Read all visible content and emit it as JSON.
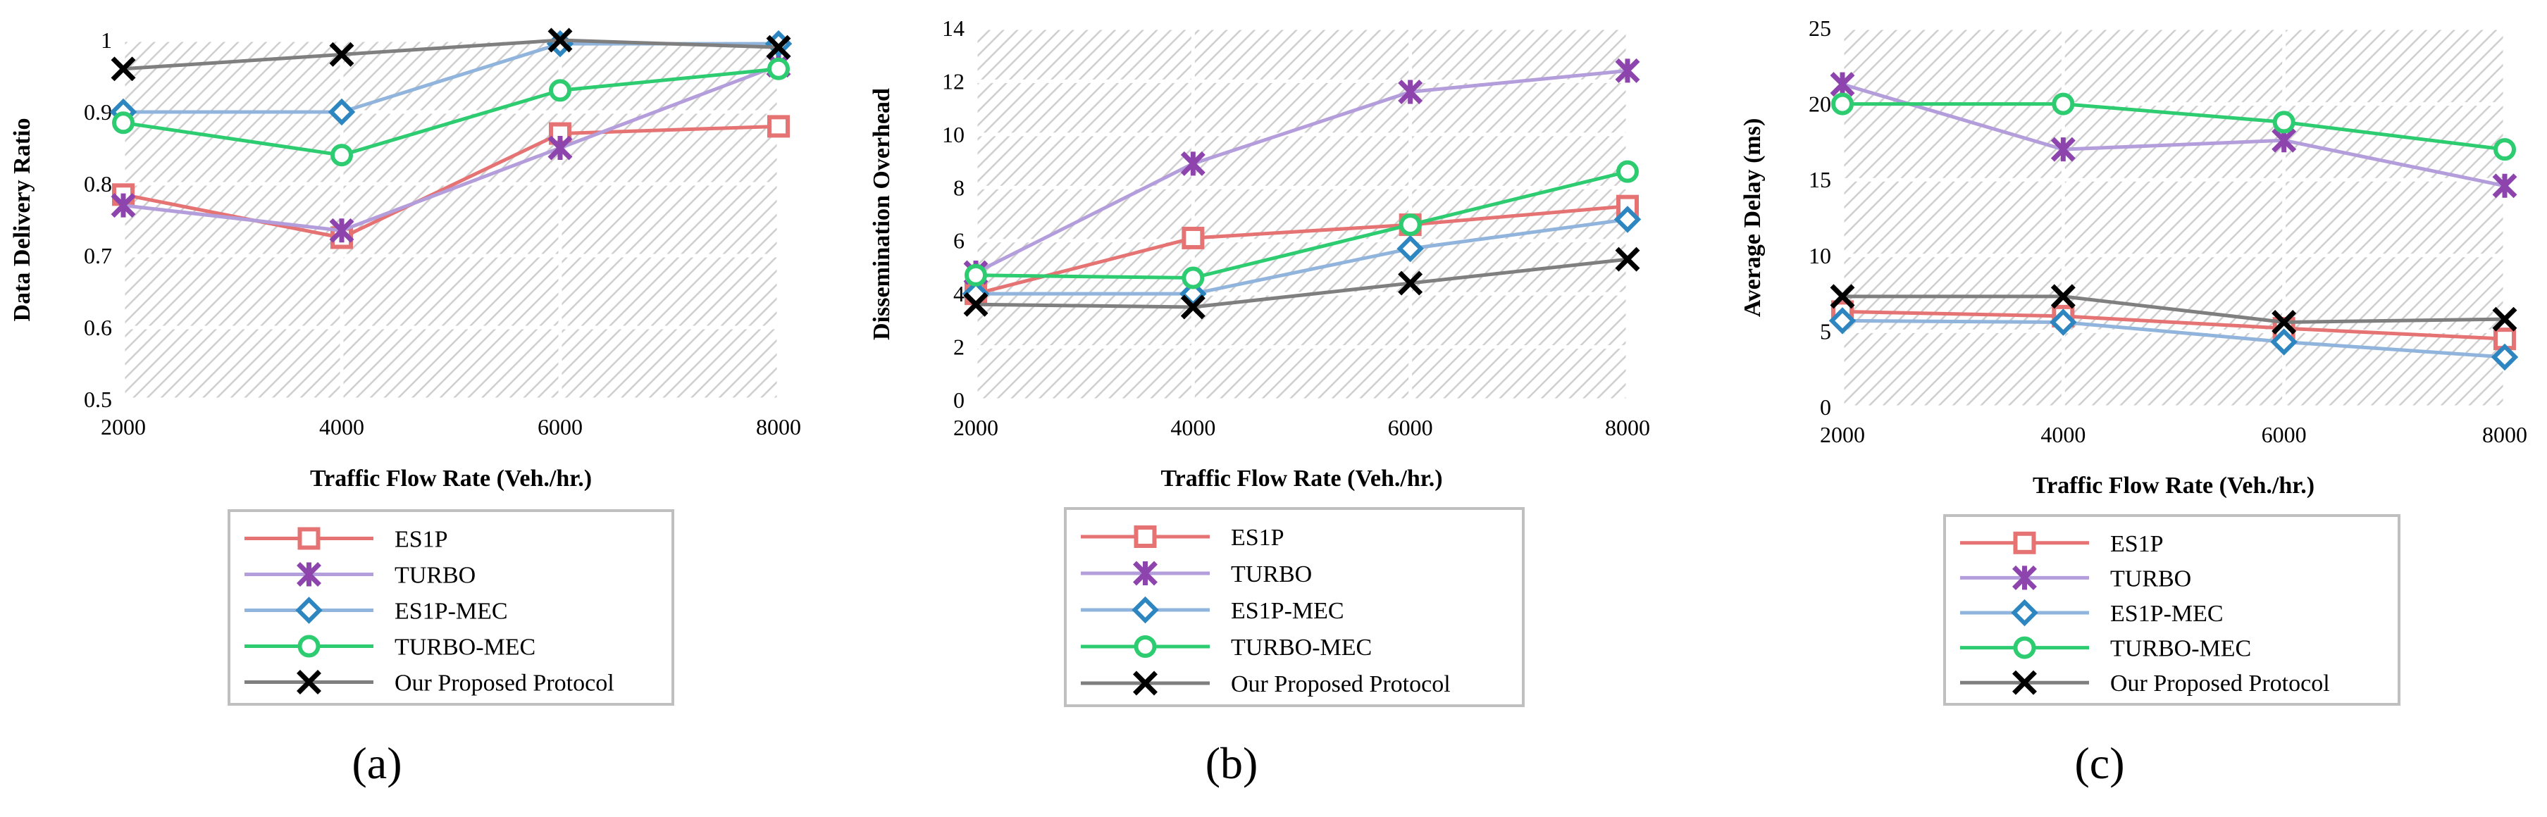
{
  "figure": {
    "panel_labels": [
      "(a)",
      "(b)",
      "(c)"
    ],
    "series_styles": [
      {
        "name": "ES1P",
        "color": "#e57373",
        "marker": "square"
      },
      {
        "name": "TURBO",
        "color": "#b39ddb",
        "marker_color": "#8e44ad",
        "marker": "star"
      },
      {
        "name": "ES1P-MEC",
        "color": "#90b4dc",
        "marker_color": "#2e86c1",
        "marker": "diamond"
      },
      {
        "name": "TURBO-MEC",
        "color": "#2ecc71",
        "marker": "circle"
      },
      {
        "name": "Our Proposed Protocol",
        "color": "#7f7f7f",
        "marker_color": "#000000",
        "marker": "x"
      }
    ]
  },
  "chart_data": [
    {
      "type": "line",
      "panel": "(a)",
      "title": "",
      "xlabel": "Traffic Flow Rate (Veh./hr.)",
      "ylabel": "Data Delivery Ratio",
      "x": [
        2000,
        4000,
        6000,
        8000
      ],
      "x_tick_labels": [
        "2000",
        "4000",
        "6000",
        "8000"
      ],
      "ylim": [
        0.5,
        1.0
      ],
      "y_ticks": [
        0.5,
        0.6,
        0.7,
        0.8,
        0.9,
        1.0
      ],
      "y_tick_labels": [
        "0.5",
        "0.6",
        "0.7",
        "0.8",
        "0.9",
        "1"
      ],
      "grid": true,
      "legend_position": "below",
      "series": [
        {
          "name": "ES1P",
          "values": [
            0.785,
            0.725,
            0.87,
            0.88
          ]
        },
        {
          "name": "TURBO",
          "values": [
            0.77,
            0.735,
            0.85,
            0.965
          ]
        },
        {
          "name": "ES1P-MEC",
          "values": [
            0.9,
            0.9,
            0.995,
            0.995
          ]
        },
        {
          "name": "TURBO-MEC",
          "values": [
            0.885,
            0.84,
            0.93,
            0.96
          ]
        },
        {
          "name": "Our Proposed Protocol",
          "values": [
            0.96,
            0.98,
            1.0,
            0.99
          ]
        }
      ]
    },
    {
      "type": "line",
      "panel": "(b)",
      "title": "",
      "xlabel": "Traffic Flow Rate (Veh./hr.)",
      "ylabel": "Dissemination Overhead",
      "x": [
        2000,
        4000,
        6000,
        8000
      ],
      "x_tick_labels": [
        "2000",
        "4000",
        "6000",
        "8000"
      ],
      "ylim": [
        0,
        14
      ],
      "y_ticks": [
        0,
        2,
        4,
        6,
        8,
        10,
        12,
        14
      ],
      "y_tick_labels": [
        "0",
        "2",
        "4",
        "6",
        "8",
        "10",
        "12",
        "14"
      ],
      "grid": true,
      "legend_position": "below",
      "series": [
        {
          "name": "ES1P",
          "values": [
            4.0,
            6.1,
            6.6,
            7.3
          ]
        },
        {
          "name": "TURBO",
          "values": [
            4.8,
            8.9,
            11.6,
            12.4
          ]
        },
        {
          "name": "ES1P-MEC",
          "values": [
            4.0,
            4.0,
            5.7,
            6.8
          ]
        },
        {
          "name": "TURBO-MEC",
          "values": [
            4.7,
            4.6,
            6.6,
            8.6
          ]
        },
        {
          "name": "Our Proposed Protocol",
          "values": [
            3.6,
            3.5,
            4.4,
            5.3
          ]
        }
      ]
    },
    {
      "type": "line",
      "panel": "(c)",
      "title": "",
      "xlabel": "Traffic Flow Rate (Veh./hr.)",
      "ylabel": "Average Delay (ms)",
      "x": [
        2000,
        4000,
        6000,
        8000
      ],
      "x_tick_labels": [
        "2000",
        "4000",
        "6000",
        "8000"
      ],
      "ylim": [
        0,
        25
      ],
      "y_ticks": [
        0,
        5,
        10,
        15,
        20,
        25
      ],
      "y_tick_labels": [
        "0",
        "5",
        "10",
        "15",
        "20",
        "25"
      ],
      "grid": true,
      "legend_position": "below",
      "series": [
        {
          "name": "ES1P",
          "values": [
            6.3,
            6.0,
            5.2,
            4.5
          ]
        },
        {
          "name": "TURBO",
          "values": [
            21.3,
            17.0,
            17.6,
            14.6
          ]
        },
        {
          "name": "ES1P-MEC",
          "values": [
            5.7,
            5.6,
            4.3,
            3.3
          ]
        },
        {
          "name": "TURBO-MEC",
          "values": [
            20.0,
            20.0,
            18.8,
            17.0
          ]
        },
        {
          "name": "Our Proposed Protocol",
          "values": [
            7.3,
            7.3,
            5.6,
            5.8
          ]
        }
      ]
    }
  ]
}
